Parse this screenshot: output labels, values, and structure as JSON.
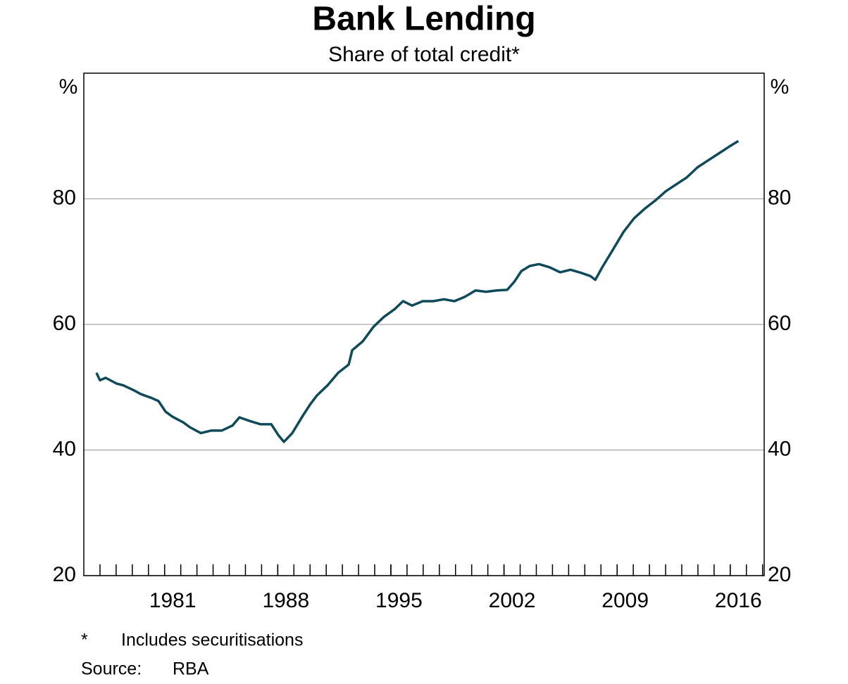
{
  "chart_data": {
    "type": "line",
    "title": "Bank Lending",
    "subtitle": "Share of total credit*",
    "ylabel": "%",
    "y2label": "%",
    "color": "#0f4a5a",
    "grid": true,
    "xlim": [
      1976,
      2018.1
    ],
    "xticks": [
      1981,
      1988,
      1995,
      2002,
      2009,
      2016
    ],
    "ylim": [
      20,
      100
    ],
    "yticks": [
      20,
      40,
      60,
      80
    ],
    "y2lim": [
      20,
      100
    ],
    "y2ticks": [
      20,
      40,
      60,
      80
    ],
    "x": [
      1976.78,
      1977.0,
      1977.35,
      1978.01,
      1978.44,
      1979.1,
      1979.53,
      1980.18,
      1980.62,
      1981.06,
      1981.49,
      1982.15,
      1982.58,
      1983.24,
      1983.89,
      1984.54,
      1985.2,
      1985.63,
      1986.29,
      1986.94,
      1987.6,
      1988.03,
      1988.38,
      1988.9,
      1989.56,
      1989.99,
      1990.43,
      1991.08,
      1991.74,
      1992.39,
      1992.61,
      1993.26,
      1993.92,
      1994.57,
      1995.22,
      1995.75,
      1996.31,
      1996.97,
      1997.62,
      1998.28,
      1998.93,
      1999.58,
      2000.24,
      2000.89,
      2001.55,
      2002.2,
      2002.64,
      2003.08,
      2003.59,
      2004.16,
      2004.82,
      2005.47,
      2006.12,
      2006.78,
      2007.34,
      2007.65,
      2008.08,
      2008.74,
      2009.39,
      2010.05,
      2010.7,
      2011.35,
      2012.01,
      2012.66,
      2013.31,
      2013.97,
      2014.62,
      2015.28,
      2015.93,
      2016.5
    ],
    "values": [
      52.3,
      51.1,
      51.5,
      50.6,
      50.3,
      49.5,
      48.9,
      48.3,
      47.8,
      46.1,
      45.3,
      44.4,
      43.6,
      42.7,
      43.1,
      43.1,
      43.9,
      45.2,
      44.6,
      44.1,
      44.1,
      42.4,
      41.3,
      42.7,
      45.5,
      47.2,
      48.7,
      50.3,
      52.3,
      53.6,
      55.9,
      57.3,
      59.6,
      61.2,
      62.4,
      63.7,
      63.0,
      63.7,
      63.7,
      64.0,
      63.7,
      64.4,
      65.4,
      65.2,
      65.4,
      65.5,
      66.8,
      68.5,
      69.3,
      69.6,
      69.1,
      68.3,
      68.7,
      68.2,
      67.7,
      67.1,
      69.1,
      71.9,
      74.7,
      76.9,
      78.4,
      79.7,
      81.2,
      82.3,
      83.4,
      85.0,
      86.1,
      87.2,
      88.3,
      89.2
    ]
  },
  "footnote": {
    "marker": "*",
    "text": "Includes securitisations"
  },
  "source": {
    "label": "Source:",
    "text": "RBA"
  }
}
